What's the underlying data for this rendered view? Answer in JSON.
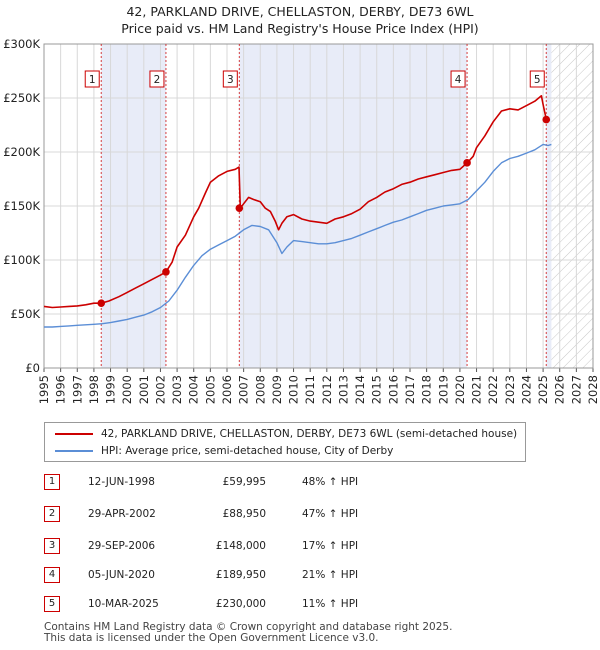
{
  "chart_data": {
    "type": "line",
    "title": "42, PARKLAND DRIVE, CHELLASTON, DERBY, DE73 6WL",
    "subtitle": "Price paid vs. HM Land Registry's House Price Index (HPI)",
    "xlabel": "",
    "ylabel": "",
    "xlim": [
      1995,
      2028
    ],
    "ylim": [
      0,
      300000
    ],
    "y_ticks": [
      0,
      50000,
      100000,
      150000,
      200000,
      250000,
      300000
    ],
    "y_tick_labels": [
      "£0",
      "£50K",
      "£100K",
      "£150K",
      "£200K",
      "£250K",
      "£300K"
    ],
    "x_ticks": [
      "1995",
      "1996",
      "1997",
      "1998",
      "1999",
      "2000",
      "2001",
      "2002",
      "2003",
      "2004",
      "2005",
      "2006",
      "2007",
      "2008",
      "2009",
      "2010",
      "2011",
      "2012",
      "2013",
      "2014",
      "2015",
      "2016",
      "2017",
      "2018",
      "2019",
      "2020",
      "2021",
      "2022",
      "2023",
      "2024",
      "2025",
      "2026",
      "2027",
      "2028"
    ],
    "hatched_from": 2025.5,
    "colors": {
      "price": "#cc0000",
      "hpi": "#5b8ed6",
      "band": "#e8ecf8",
      "grid": "#d8d8d8"
    },
    "series": [
      {
        "name": "42, PARKLAND DRIVE, CHELLASTON, DERBY, DE73 6WL (semi-detached house)",
        "key": "price",
        "x": [
          1995.0,
          1995.5,
          1996.0,
          1996.5,
          1997.0,
          1997.5,
          1998.0,
          1998.44,
          1998.9,
          1999.5,
          2000.0,
          2000.5,
          2001.0,
          2001.5,
          2002.0,
          2002.33,
          2002.7,
          2003.0,
          2003.5,
          2004.0,
          2004.3,
          2004.7,
          2005.0,
          2005.5,
          2006.0,
          2006.5,
          2006.72,
          2006.8,
          2007.0,
          2007.3,
          2007.6,
          2008.0,
          2008.3,
          2008.6,
          2008.9,
          2009.1,
          2009.3,
          2009.6,
          2010.0,
          2010.5,
          2011.0,
          2011.5,
          2012.0,
          2012.5,
          2013.0,
          2013.5,
          2014.0,
          2014.5,
          2015.0,
          2015.5,
          2016.0,
          2016.5,
          2017.0,
          2017.5,
          2018.0,
          2018.5,
          2019.0,
          2019.5,
          2020.0,
          2020.43,
          2020.8,
          2021.0,
          2021.5,
          2022.0,
          2022.5,
          2023.0,
          2023.5,
          2024.0,
          2024.5,
          2024.9,
          2025.0,
          2025.19,
          2025.4
        ],
        "y": [
          57000,
          56000,
          56500,
          57000,
          57500,
          58500,
          60000,
          59995,
          62000,
          66000,
          70000,
          74000,
          78000,
          82000,
          86000,
          88950,
          98000,
          112000,
          123000,
          140000,
          148000,
          162000,
          172000,
          178000,
          182000,
          184000,
          186000,
          148000,
          152000,
          158000,
          156000,
          154000,
          148000,
          145000,
          136000,
          128000,
          134000,
          140000,
          142000,
          138000,
          136000,
          135000,
          134000,
          138000,
          140000,
          143000,
          147000,
          154000,
          158000,
          163000,
          166000,
          170000,
          172000,
          175000,
          177000,
          179000,
          181000,
          183000,
          184000,
          189950,
          196000,
          204000,
          215000,
          228000,
          238000,
          240000,
          239000,
          243000,
          247000,
          252000,
          244000,
          230000,
          229000
        ]
      },
      {
        "name": "HPI: Average price, semi-detached house, City of Derby",
        "key": "hpi",
        "x": [
          1995.0,
          1995.5,
          1996.0,
          1996.5,
          1997.0,
          1997.5,
          1998.0,
          1998.5,
          1999.0,
          1999.5,
          2000.0,
          2000.5,
          2001.0,
          2001.5,
          2002.0,
          2002.5,
          2003.0,
          2003.5,
          2004.0,
          2004.5,
          2005.0,
          2005.5,
          2006.0,
          2006.5,
          2007.0,
          2007.5,
          2008.0,
          2008.5,
          2009.0,
          2009.3,
          2009.6,
          2010.0,
          2010.5,
          2011.0,
          2011.5,
          2012.0,
          2012.5,
          2013.0,
          2013.5,
          2014.0,
          2014.5,
          2015.0,
          2015.5,
          2016.0,
          2016.5,
          2017.0,
          2017.5,
          2018.0,
          2018.5,
          2019.0,
          2019.5,
          2020.0,
          2020.5,
          2021.0,
          2021.5,
          2022.0,
          2022.5,
          2023.0,
          2023.5,
          2024.0,
          2024.5,
          2025.0,
          2025.3,
          2025.5
        ],
        "y": [
          38000,
          38000,
          38500,
          39000,
          39500,
          40000,
          40500,
          41000,
          42000,
          43500,
          45000,
          47000,
          49000,
          52000,
          56000,
          62000,
          72000,
          84000,
          95000,
          104000,
          110000,
          114000,
          118000,
          122000,
          128000,
          132000,
          131000,
          128000,
          116000,
          106000,
          112000,
          118000,
          117000,
          116000,
          115000,
          115000,
          116000,
          118000,
          120000,
          123000,
          126000,
          129000,
          132000,
          135000,
          137000,
          140000,
          143000,
          146000,
          148000,
          150000,
          151000,
          152000,
          156000,
          164000,
          172000,
          182000,
          190000,
          194000,
          196000,
          199000,
          202000,
          207000,
          206000,
          207000
        ]
      }
    ],
    "sales": [
      {
        "num": "1",
        "year": 1998.44,
        "date": "12-JUN-1998",
        "price": "£59,995",
        "price_value": 59995,
        "hpi": "48% ↑ HPI"
      },
      {
        "num": "2",
        "year": 2002.33,
        "date": "29-APR-2002",
        "price": "£88,950",
        "price_value": 88950,
        "hpi": "47% ↑ HPI"
      },
      {
        "num": "3",
        "year": 2006.74,
        "date": "29-SEP-2006",
        "price": "£148,000",
        "price_value": 148000,
        "hpi": "17% ↑ HPI"
      },
      {
        "num": "4",
        "year": 2020.43,
        "date": "05-JUN-2020",
        "price": "£189,950",
        "price_value": 189950,
        "hpi": "21% ↑ HPI"
      },
      {
        "num": "5",
        "year": 2025.19,
        "date": "10-MAR-2025",
        "price": "£230,000",
        "price_value": 230000,
        "hpi": "11% ↑ HPI"
      }
    ],
    "legend": {
      "price_label": "42, PARKLAND DRIVE, CHELLASTON, DERBY, DE73 6WL (semi-detached house)",
      "hpi_label": "HPI: Average price, semi-detached house, City of Derby"
    },
    "footer": {
      "line1": "Contains HM Land Registry data © Crown copyright and database right 2025.",
      "line2": "This data is licensed under the Open Government Licence v3.0."
    }
  }
}
